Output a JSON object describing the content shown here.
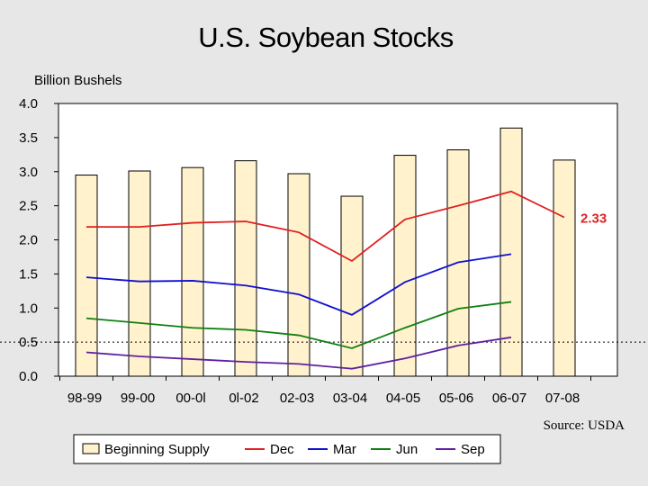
{
  "chart_data": {
    "type": "bar",
    "title": "U.S. Soybean Stocks",
    "ylabel": "Billion Bushels",
    "xlabel": "",
    "ylim": [
      0,
      4.0
    ],
    "yticks": [
      "0.0",
      "0.5",
      "1.0",
      "1.5",
      "2.0",
      "2.5",
      "3.0",
      "3.5",
      "4.0"
    ],
    "categories": [
      "98-99",
      "99-00",
      "00-0l",
      "0l-02",
      "02-03",
      "03-04",
      "04-05",
      "05-06",
      "06-07",
      "07-08"
    ],
    "bar_series": {
      "name": "Beginning Supply",
      "color": "#fff2cc",
      "values": [
        2.95,
        3.01,
        3.06,
        3.16,
        2.97,
        2.64,
        3.24,
        3.32,
        3.64,
        3.17
      ]
    },
    "series": [
      {
        "name": "Dec",
        "color": "#e02020",
        "values": [
          2.19,
          2.19,
          2.25,
          2.27,
          2.11,
          1.69,
          2.3,
          2.5,
          2.71,
          2.33
        ]
      },
      {
        "name": "Mar",
        "color": "#1010d0",
        "values": [
          1.45,
          1.39,
          1.4,
          1.33,
          1.2,
          0.9,
          1.38,
          1.67,
          1.79,
          null
        ]
      },
      {
        "name": "Jun",
        "color": "#108010",
        "values": [
          0.85,
          0.78,
          0.71,
          0.68,
          0.6,
          0.41,
          0.71,
          0.99,
          1.09,
          null
        ]
      },
      {
        "name": "Sep",
        "color": "#6020a0",
        "values": [
          0.35,
          0.29,
          0.25,
          0.21,
          0.18,
          0.11,
          0.26,
          0.45,
          0.57,
          null
        ]
      }
    ],
    "reference_line": {
      "y": 0.5,
      "style": "dotted"
    },
    "annotation": {
      "text": "2.33",
      "series": "Dec",
      "category": "07-08"
    },
    "source": "Source:  USDA",
    "legend": {
      "placement": "bottom",
      "entries": [
        "Beginning Supply",
        "Dec",
        "Mar",
        "Jun",
        "Sep"
      ]
    },
    "grid": false
  }
}
